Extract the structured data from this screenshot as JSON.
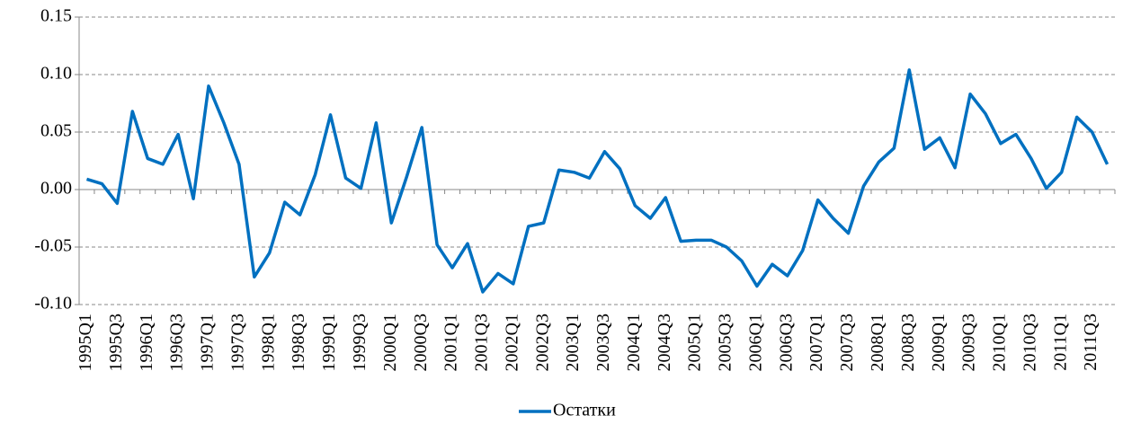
{
  "chart_data": {
    "type": "line",
    "categories": [
      "1995Q1",
      null,
      "1995Q3",
      null,
      "1996Q1",
      null,
      "1996Q3",
      null,
      "1997Q1",
      null,
      "1997Q3",
      null,
      "1998Q1",
      null,
      "1998Q3",
      null,
      "1999Q1",
      null,
      "1999Q3",
      null,
      "2000Q1",
      null,
      "2000Q3",
      null,
      "2001Q1",
      null,
      "2001Q3",
      null,
      "2002Q1",
      null,
      "2002Q3",
      null,
      "2003Q1",
      null,
      "2003Q3",
      null,
      "2004Q1",
      null,
      "2004Q3",
      null,
      "2005Q1",
      null,
      "2005Q3",
      null,
      "2006Q1",
      null,
      "2006Q3",
      null,
      "2007Q1",
      null,
      "2007Q3",
      null,
      "2008Q1",
      null,
      "2008Q3",
      null,
      "2009Q1",
      null,
      "2009Q3",
      null,
      "2010Q1",
      null,
      "2010Q3",
      null,
      "2011Q1",
      null,
      "2011Q3",
      null
    ],
    "series": [
      {
        "name": "Остатки",
        "color": "#0070c0",
        "values": [
          0.009,
          0.005,
          -0.012,
          0.068,
          0.027,
          0.022,
          0.048,
          -0.008,
          0.09,
          0.058,
          0.022,
          -0.076,
          -0.055,
          -0.011,
          -0.022,
          0.013,
          0.065,
          0.01,
          0.001,
          0.058,
          -0.029,
          0.011,
          0.054,
          -0.048,
          -0.068,
          -0.047,
          -0.089,
          -0.073,
          -0.082,
          -0.032,
          -0.029,
          0.017,
          0.015,
          0.01,
          0.033,
          0.018,
          -0.014,
          -0.025,
          -0.007,
          -0.045,
          -0.044,
          -0.044,
          -0.05,
          -0.062,
          -0.084,
          -0.065,
          -0.075,
          -0.053,
          -0.009,
          -0.025,
          -0.038,
          0.003,
          0.024,
          0.036,
          0.104,
          0.035,
          0.045,
          0.019,
          0.083,
          0.066,
          0.04,
          0.048,
          0.027,
          0.001,
          0.015,
          0.063,
          0.05,
          0.022
        ]
      }
    ],
    "ylim": [
      -0.1,
      0.15
    ],
    "yticks": [
      {
        "value": -0.1,
        "label": "-0.10"
      },
      -0.05,
      {
        "value": 0,
        "label": "0.00"
      },
      0.05,
      {
        "value": 0.1,
        "label": "0.10"
      },
      0.15
    ],
    "grid": true,
    "legend": "bottom"
  }
}
